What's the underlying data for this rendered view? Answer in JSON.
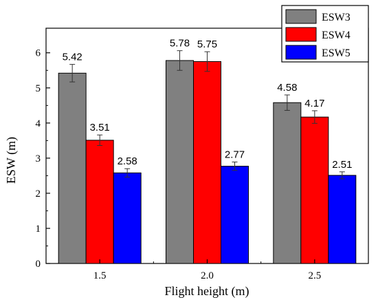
{
  "chart_data": {
    "type": "bar",
    "xlabel": "Flight height (m)",
    "ylabel": "ESW (m)",
    "categories": [
      "1.5",
      "2.0",
      "2.5"
    ],
    "ylim": [
      0,
      6.7
    ],
    "yticks": [
      "0",
      "1",
      "2",
      "3",
      "4",
      "5",
      "6"
    ],
    "series": [
      {
        "name": "ESW3",
        "values": [
          5.42,
          5.78,
          4.58
        ],
        "labels": [
          "5.42",
          "5.78",
          "4.58"
        ],
        "errors": [
          0.25,
          0.28,
          0.22
        ],
        "color": "#808080"
      },
      {
        "name": "ESW4",
        "values": [
          3.51,
          5.75,
          4.17
        ],
        "labels": [
          "3.51",
          "5.75",
          "4.17"
        ],
        "errors": [
          0.15,
          0.28,
          0.18
        ],
        "color": "#ff0000"
      },
      {
        "name": "ESW5",
        "values": [
          2.58,
          2.77,
          2.51
        ],
        "labels": [
          "2.58",
          "2.77",
          "2.51"
        ],
        "errors": [
          0.12,
          0.12,
          0.1
        ],
        "color": "#0000ff"
      }
    ],
    "legend_position": "top-right",
    "grid": false
  }
}
